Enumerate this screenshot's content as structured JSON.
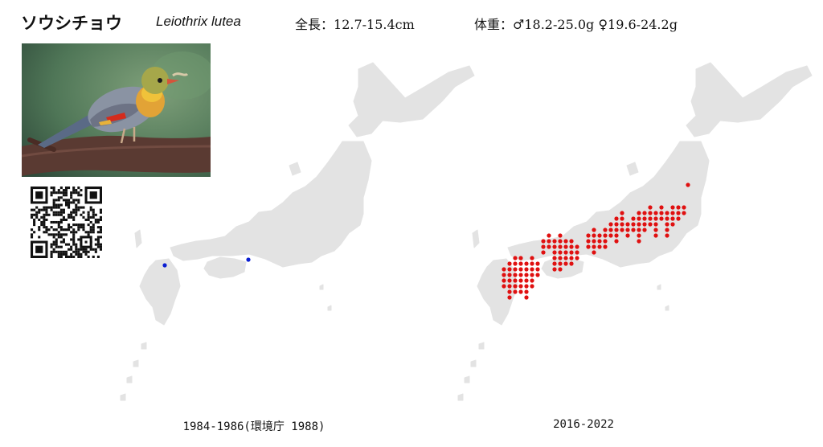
{
  "header": {
    "japanese_name": "ソウシチョウ",
    "scientific_name": "Leiothrix lutea",
    "length_label": "全長：",
    "length_value": "12.7-15.4cm",
    "weight_label": "体重：",
    "weight_value": "♂18.2-25.0g ♀19.6-24.2g"
  },
  "photo": {
    "subject": "Leiothrix lutea perched on branch"
  },
  "qr_code": {
    "icon": "qr-code-icon"
  },
  "maps": [
    {
      "period": "1984-1986(環境庁 1988)",
      "dot_color": "#0a1ed2",
      "record_count": 2
    },
    {
      "period": "2016-2022",
      "dot_color": "#e01010",
      "record_count": 129
    }
  ],
  "colors": {
    "land": "#e3e3e3",
    "background": "#ffffff"
  }
}
